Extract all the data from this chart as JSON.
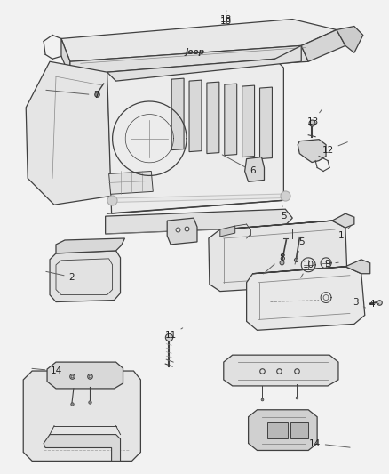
{
  "background_color": "#f0f0f0",
  "line_color": "#404040",
  "label_color": "#222222",
  "fig_width": 4.38,
  "fig_height": 5.33,
  "dpi": 100,
  "label_fontsize": 7.5,
  "leader_color": "#606060"
}
